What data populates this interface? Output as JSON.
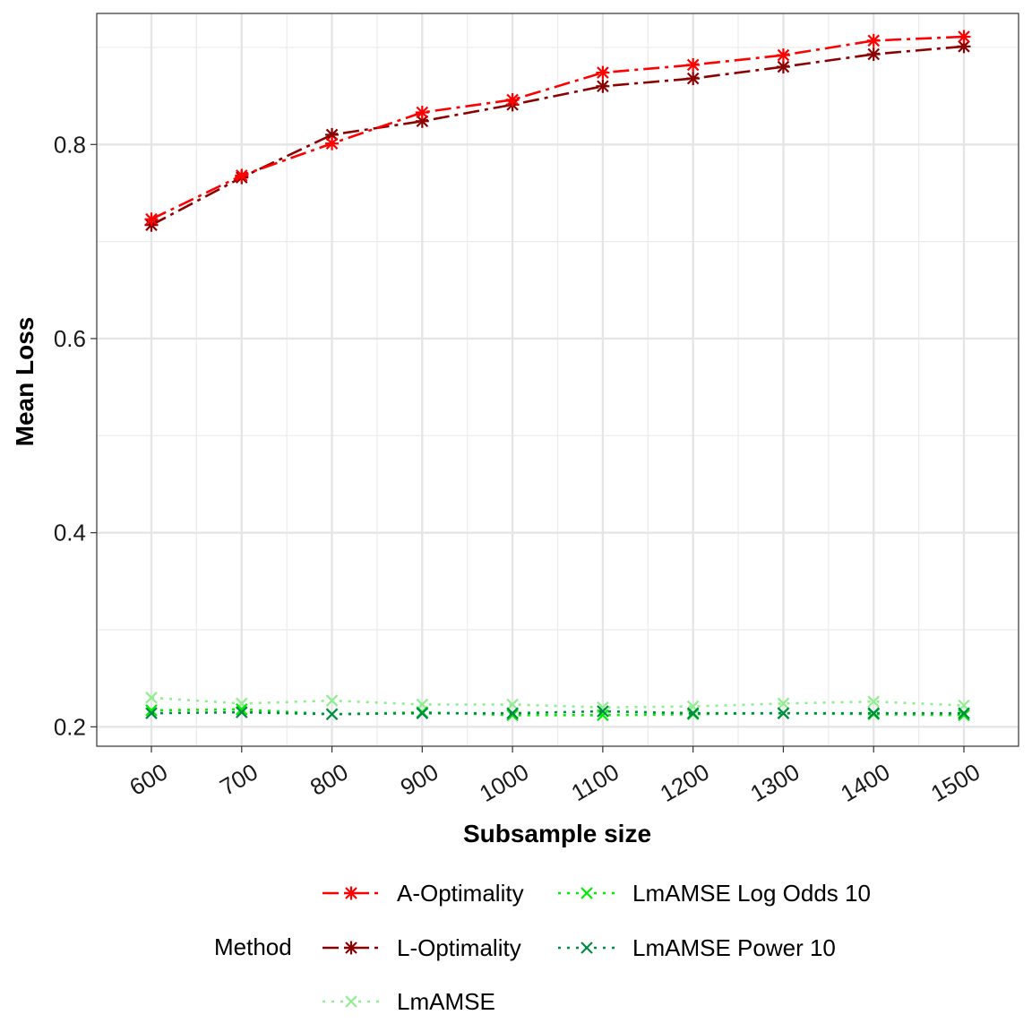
{
  "chart_data": {
    "type": "line",
    "xlabel": "Subsample size",
    "ylabel": "Mean Loss",
    "x": [
      600,
      700,
      800,
      900,
      1000,
      1100,
      1200,
      1300,
      1400,
      1500
    ],
    "x_tick_labels": [
      "600",
      "700",
      "800",
      "900",
      "1000",
      "1100",
      "1200",
      "1300",
      "1400",
      "1500"
    ],
    "y_ticks": [
      0.2,
      0.4,
      0.6,
      0.8
    ],
    "y_tick_labels": [
      "0.2",
      "0.4",
      "0.6",
      "0.8"
    ],
    "ylim": [
      0.18,
      0.935
    ],
    "grid": true,
    "legend": {
      "title": "Method",
      "position": "bottom"
    },
    "series": [
      {
        "name": "A-Optimality",
        "color": "#ff0000",
        "dash": "longdash-dot",
        "marker": "asterisk",
        "values": [
          0.723,
          0.768,
          0.801,
          0.833,
          0.846,
          0.874,
          0.882,
          0.892,
          0.907,
          0.911
        ]
      },
      {
        "name": "L-Optimality",
        "color": "#8b0000",
        "dash": "longdash-dot",
        "marker": "asterisk",
        "values": [
          0.717,
          0.766,
          0.81,
          0.824,
          0.841,
          0.86,
          0.868,
          0.88,
          0.893,
          0.901
        ]
      },
      {
        "name": "LmAMSE",
        "color": "#90ee90",
        "dash": "dotted",
        "marker": "x",
        "values": [
          0.23,
          0.224,
          0.227,
          0.223,
          0.223,
          0.22,
          0.221,
          0.224,
          0.226,
          0.222
        ]
      },
      {
        "name": "LmAMSE Log Odds 10",
        "color": "#00ee00",
        "dash": "dotted",
        "marker": "x",
        "values": [
          0.217,
          0.218,
          0.213,
          0.215,
          0.212,
          0.212,
          0.213,
          0.214,
          0.213,
          0.212
        ]
      },
      {
        "name": "LmAMSE Power 10",
        "color": "#008b45",
        "dash": "dotted",
        "marker": "x",
        "values": [
          0.214,
          0.215,
          0.213,
          0.214,
          0.214,
          0.216,
          0.214,
          0.214,
          0.214,
          0.214
        ]
      }
    ]
  }
}
